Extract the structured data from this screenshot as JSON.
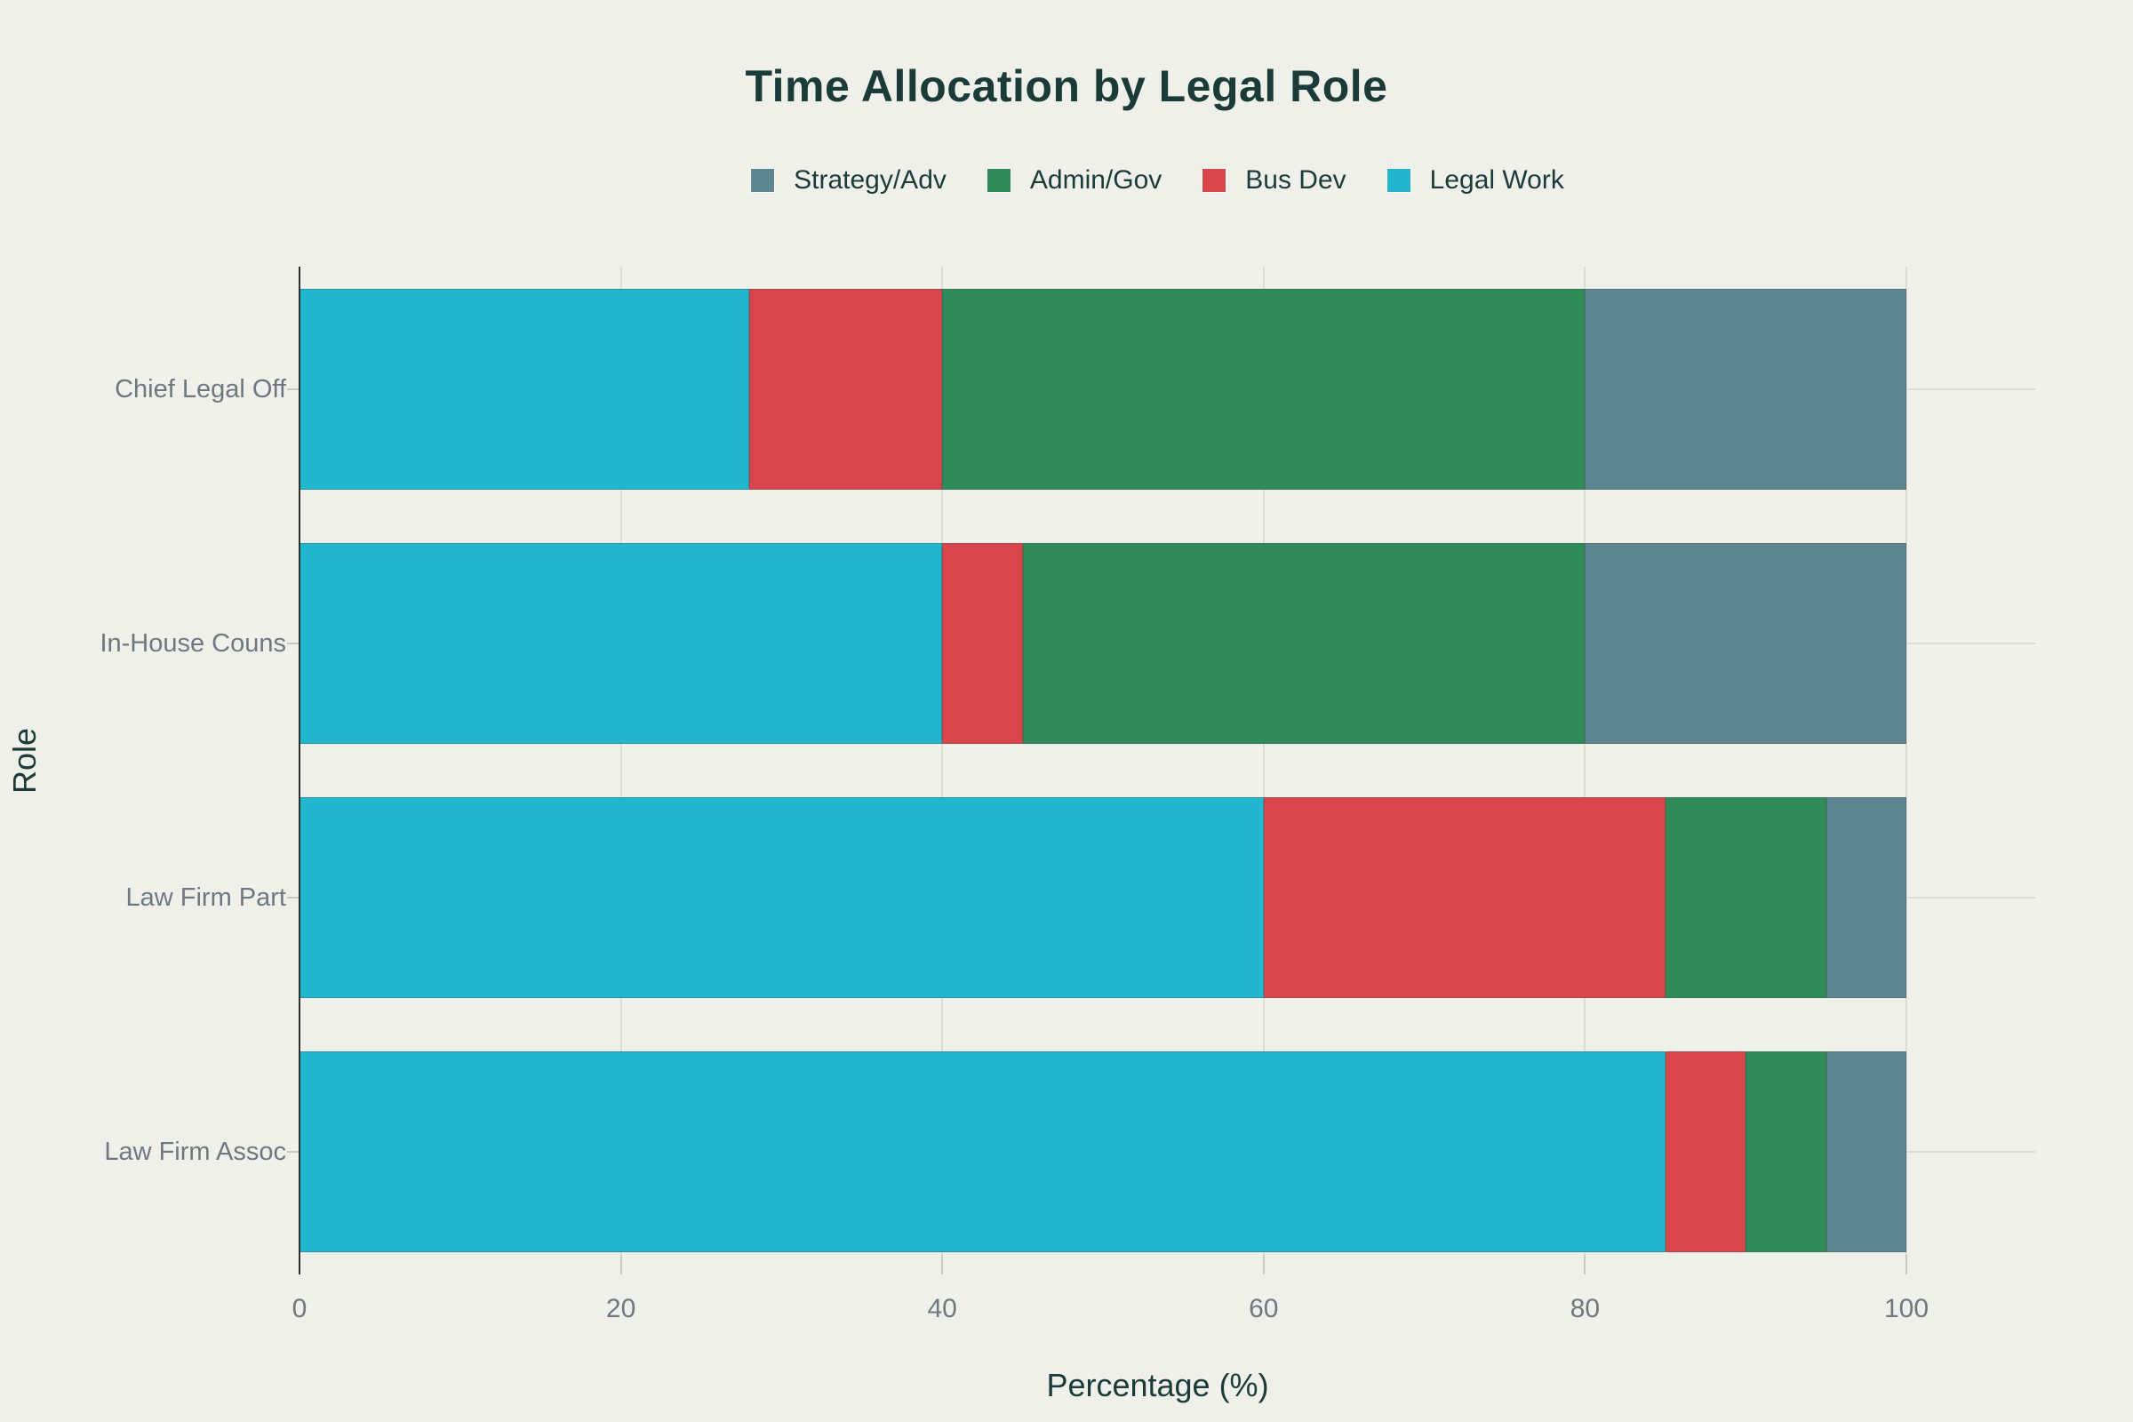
{
  "colors": {
    "bg": "#F0F0EA",
    "heading": "#1B3B39",
    "ticktext": "#6E7881",
    "grid": "#DCDCD5",
    "axis": "#2F2F2F",
    "tick": "#C9C9C2"
  },
  "chart_data": {
    "type": "bar",
    "orientation": "horizontal",
    "stacked": true,
    "title": "Time Allocation by Legal Role",
    "xlabel": "Percentage (%)",
    "ylabel": "Role",
    "x_ticks": [
      0,
      20,
      40,
      60,
      80,
      100
    ],
    "x_range": [
      0,
      107
    ],
    "grid": true,
    "legend_position": "top-center",
    "legend": [
      "Strategy/Adv",
      "Admin/Gov",
      "Bus Dev",
      "Legal Work"
    ],
    "categories": [
      "Chief Legal Off",
      "In-House Couns",
      "Law Firm Part",
      "Law Firm Assoc"
    ],
    "series": [
      {
        "name": "Legal Work",
        "color": "#21B6CD",
        "values": [
          28,
          40,
          60,
          85
        ]
      },
      {
        "name": "Bus Dev",
        "color": "#D8464B",
        "values": [
          12,
          5,
          25,
          5
        ]
      },
      {
        "name": "Admin/Gov",
        "color": "#2F8B58",
        "values": [
          40,
          35,
          10,
          5
        ]
      },
      {
        "name": "Strategy/Adv",
        "color": "#5D8690",
        "values": [
          20,
          20,
          5,
          5
        ]
      }
    ]
  }
}
